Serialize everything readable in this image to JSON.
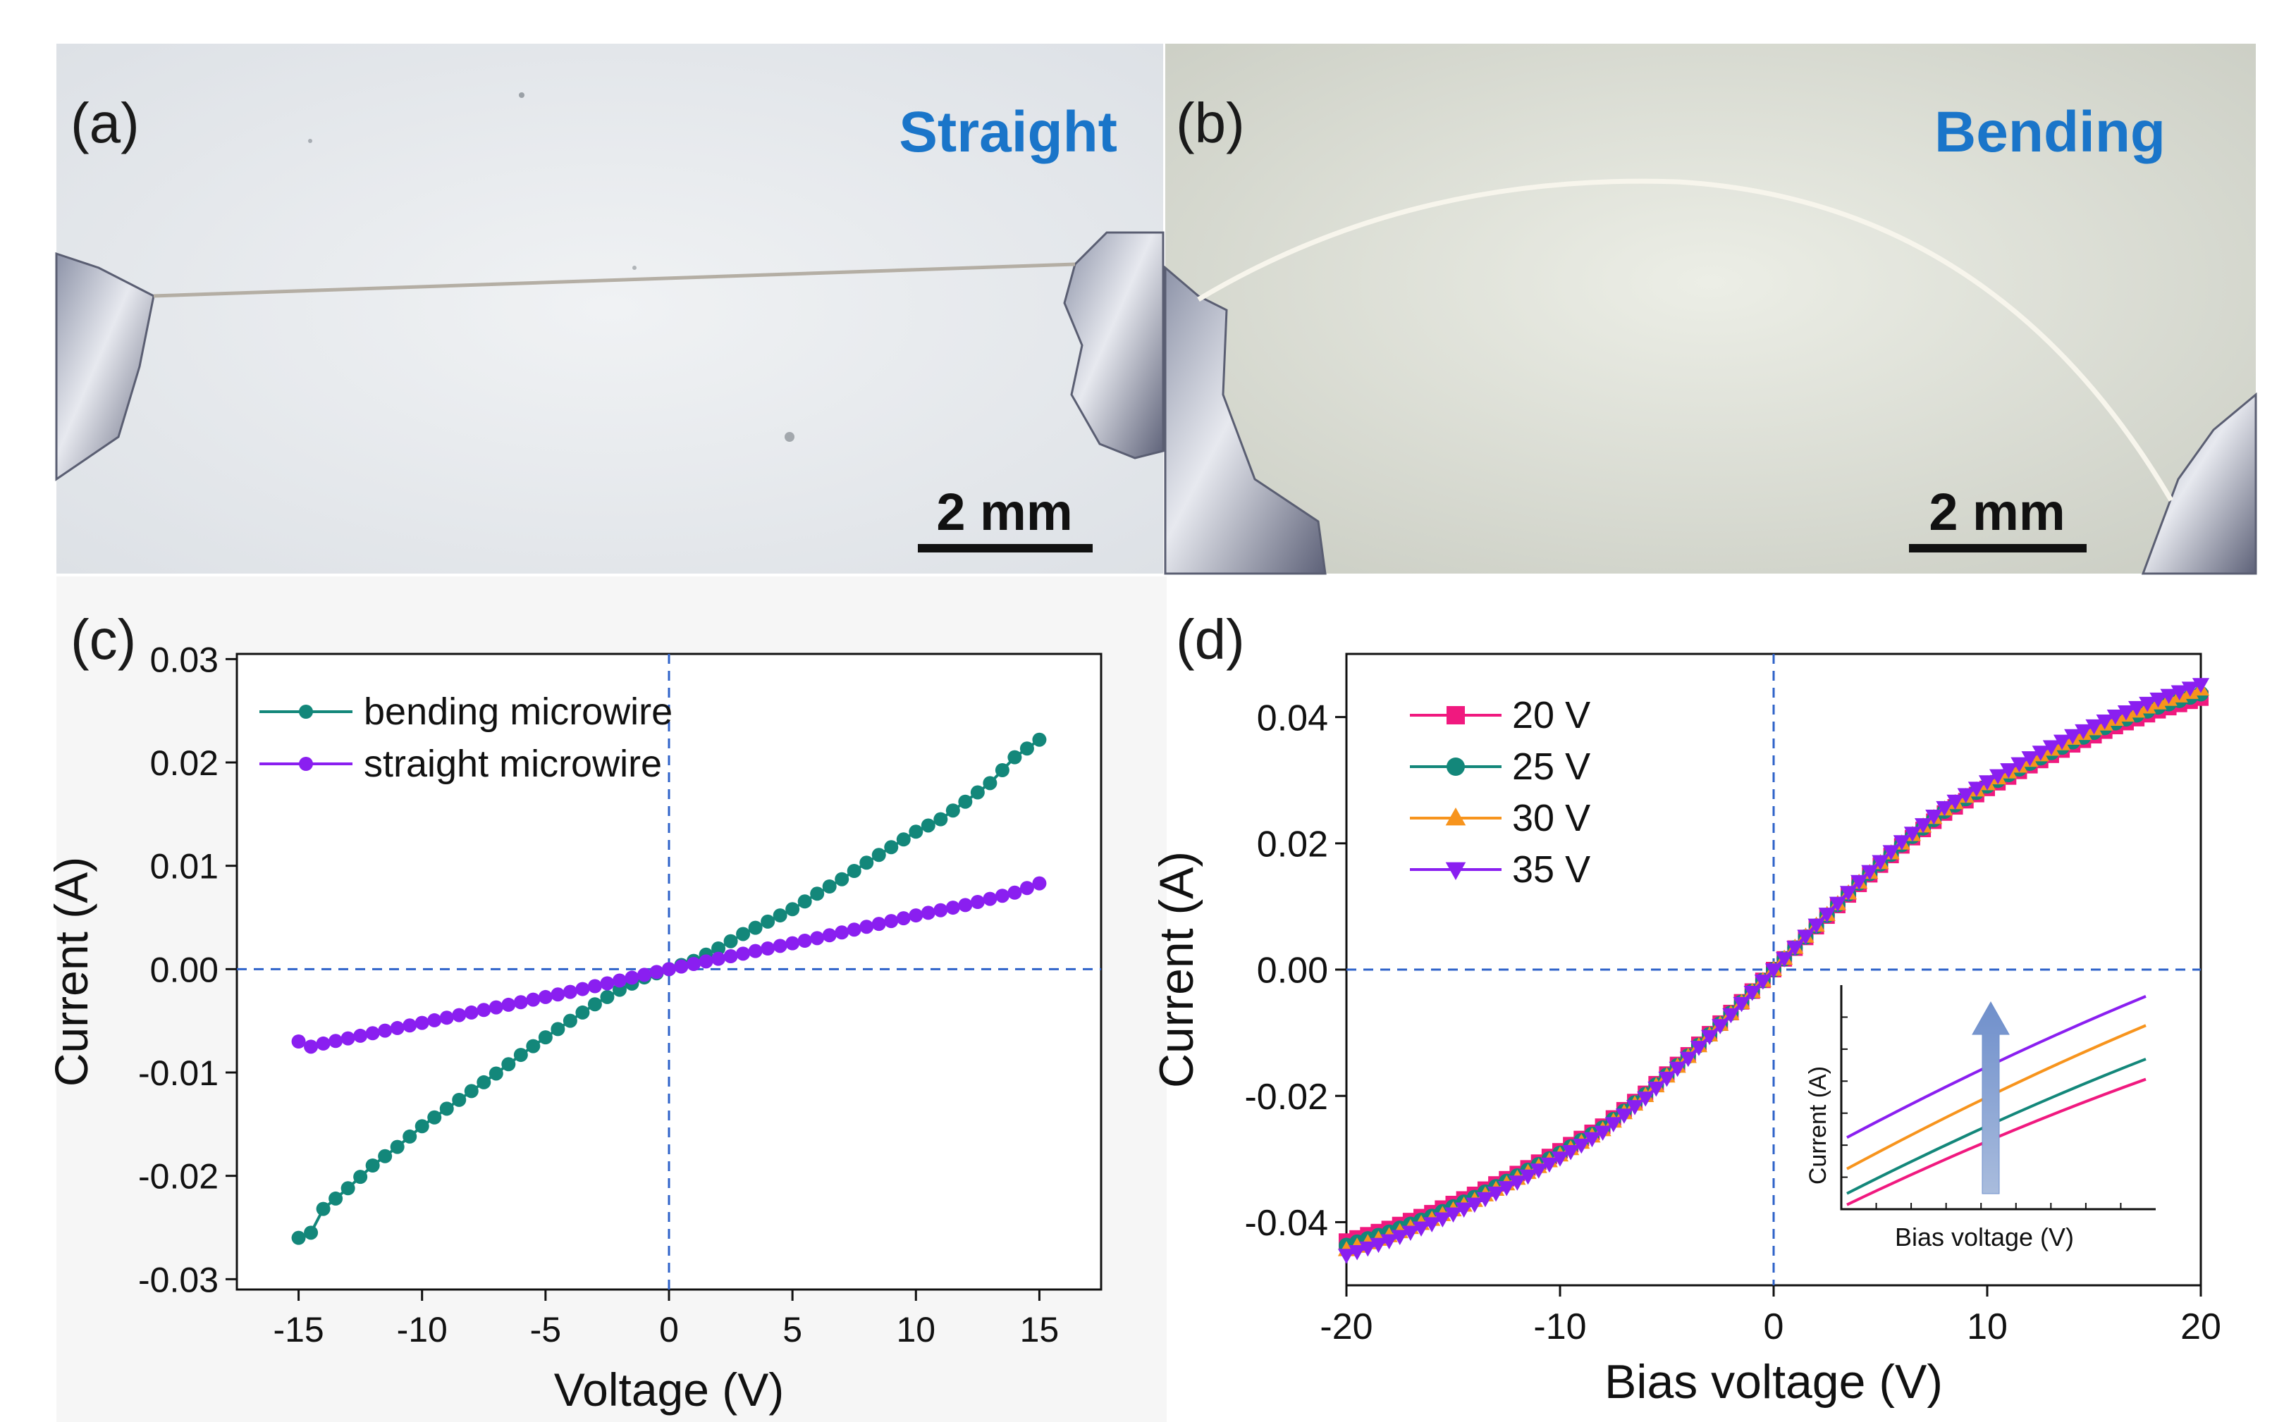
{
  "panels": {
    "a": {
      "label": "(a)",
      "title": "Straight",
      "scale": "2 mm"
    },
    "b": {
      "label": "(b)",
      "title": "Bending",
      "scale": "2 mm"
    },
    "c": {
      "label": "(c)"
    },
    "d": {
      "label": "(d)"
    }
  },
  "colors": {
    "title_blue": "#1a75c9",
    "teal": "#13877a",
    "purple": "#8a1ff0",
    "pink": "#f0197f",
    "orange": "#f7941d",
    "axis_dash": "#2e62c9",
    "inset_arrow": "#7f9ecf"
  },
  "chart_data": [
    {
      "id": "c",
      "type": "line",
      "title": "",
      "xlabel": "Voltage (V)",
      "ylabel": "Current (A)",
      "xlim": [
        -17.5,
        17.5
      ],
      "ylim": [
        -0.031,
        0.0305
      ],
      "xticks": [
        -15,
        -10,
        -5,
        0,
        5,
        10,
        15
      ],
      "yticks": [
        -0.03,
        -0.02,
        -0.01,
        0.0,
        0.01,
        0.02,
        0.03
      ],
      "ytick_labels": [
        "-0.03",
        "-0.02",
        "-0.01",
        "0.00",
        "0.01",
        "0.02",
        "0.03"
      ],
      "legend_position": "top-left",
      "reference_lines": [
        "x=0",
        "y=0"
      ],
      "series": [
        {
          "name": "bending microwire",
          "color": "#13877a",
          "marker": "circle",
          "x": [
            -15,
            -14.5,
            -14,
            -13,
            -12,
            -11,
            -10,
            -9,
            -8,
            -7,
            -6,
            -5,
            -4,
            -3,
            -2,
            -1,
            0,
            1,
            2,
            3,
            4,
            5,
            6,
            7,
            8,
            9,
            10,
            11,
            12,
            13,
            14,
            15
          ],
          "y": [
            -0.026,
            -0.0255,
            -0.0232,
            -0.0212,
            -0.019,
            -0.0172,
            -0.0152,
            -0.0135,
            -0.0118,
            -0.0101,
            -0.0083,
            -0.0066,
            -0.005,
            -0.0034,
            -0.002,
            -0.0008,
            0.0,
            0.0008,
            0.002,
            0.0034,
            0.0046,
            0.0058,
            0.0073,
            0.0087,
            0.0103,
            0.0118,
            0.0133,
            0.0145,
            0.0162,
            0.018,
            0.0205,
            0.0222
          ]
        },
        {
          "name": "straight microwire",
          "color": "#8a1ff0",
          "marker": "circle",
          "x": [
            -15,
            -14.5,
            -14,
            -12,
            -10,
            -8,
            -6,
            -4,
            -2,
            0,
            2,
            4,
            6,
            8,
            10,
            12,
            14,
            15
          ],
          "y": [
            -0.007,
            -0.0075,
            -0.0072,
            -0.0062,
            -0.0052,
            -0.0042,
            -0.0032,
            -0.0022,
            -0.0011,
            0.0,
            0.001,
            0.002,
            0.003,
            0.0041,
            0.0052,
            0.0062,
            0.0074,
            0.0083
          ]
        }
      ]
    },
    {
      "id": "d",
      "type": "line",
      "title": "",
      "xlabel": "Bias voltage (V)",
      "ylabel": "Current (A)",
      "xlim": [
        -20,
        20
      ],
      "ylim": [
        -0.05,
        0.05
      ],
      "xticks": [
        -20,
        -10,
        0,
        10,
        20
      ],
      "yticks": [
        -0.04,
        -0.02,
        0.0,
        0.02,
        0.04
      ],
      "ytick_labels": [
        "-0.04",
        "-0.02",
        "0.00",
        "0.02",
        "0.04"
      ],
      "legend_position": "top-left",
      "reference_lines": [
        "x=0",
        "y=0"
      ],
      "x": [
        -20,
        -18,
        -16,
        -14,
        -12,
        -10,
        -8,
        -6,
        -4,
        -2,
        0,
        2,
        4,
        6,
        8,
        10,
        12,
        14,
        16,
        18,
        20
      ],
      "series": [
        {
          "name": "20 V",
          "color": "#f0197f",
          "marker": "square",
          "y": [
            -0.043,
            -0.041,
            -0.0385,
            -0.0356,
            -0.0323,
            -0.0287,
            -0.0248,
            -0.0196,
            -0.0135,
            -0.0068,
            0.0,
            0.0068,
            0.0135,
            0.0196,
            0.0248,
            0.0287,
            0.0323,
            0.0356,
            0.0385,
            0.041,
            0.043
          ]
        },
        {
          "name": "25 V",
          "color": "#13877a",
          "marker": "circle",
          "y": [
            -0.0437,
            -0.0416,
            -0.0391,
            -0.0361,
            -0.0327,
            -0.0291,
            -0.0251,
            -0.0198,
            -0.0137,
            -0.0069,
            0.0,
            0.0069,
            0.0137,
            0.0198,
            0.0251,
            0.0291,
            0.0327,
            0.0361,
            0.0391,
            0.0416,
            0.0437
          ]
        },
        {
          "name": "30 V",
          "color": "#f7941d",
          "marker": "triangle-up",
          "y": [
            -0.0444,
            -0.0422,
            -0.0396,
            -0.0366,
            -0.0331,
            -0.0294,
            -0.0254,
            -0.02,
            -0.0138,
            -0.007,
            0.0,
            0.007,
            0.0138,
            0.02,
            0.0254,
            0.0294,
            0.0331,
            0.0366,
            0.0396,
            0.0422,
            0.0444
          ]
        },
        {
          "name": "35 V",
          "color": "#8a1ff0",
          "marker": "triangle-down",
          "y": [
            -0.0452,
            -0.0429,
            -0.0402,
            -0.0371,
            -0.0336,
            -0.0298,
            -0.0257,
            -0.0203,
            -0.014,
            -0.0071,
            0.0,
            0.0071,
            0.014,
            0.0203,
            0.0257,
            0.0298,
            0.0336,
            0.0371,
            0.0402,
            0.0429,
            0.0452
          ]
        }
      ],
      "inset": {
        "type": "line",
        "xlabel": "Bias voltage (V)",
        "ylabel": "Current (A)",
        "annotation": "upward arrow indicating current increase with increasing gate voltage",
        "series": [
          {
            "name": "20 V",
            "color": "#f0197f",
            "start": 0.02,
            "end": 0.58
          },
          {
            "name": "25 V",
            "color": "#13877a",
            "start": 0.07,
            "end": 0.67
          },
          {
            "name": "30 V",
            "color": "#f7941d",
            "start": 0.18,
            "end": 0.82
          },
          {
            "name": "35 V",
            "color": "#8a1ff0",
            "start": 0.32,
            "end": 0.95
          }
        ]
      }
    }
  ]
}
